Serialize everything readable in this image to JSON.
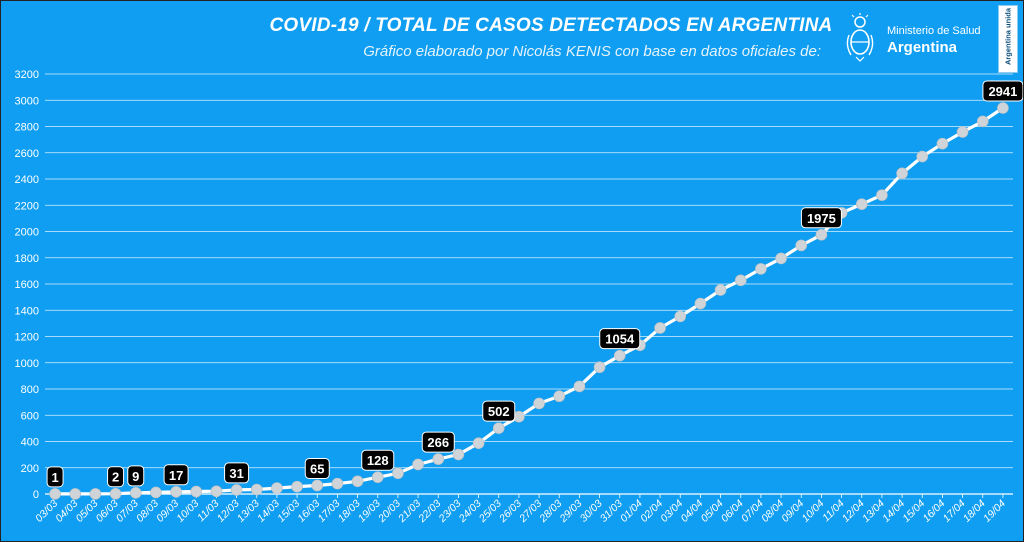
{
  "title": "COVID-19  /  TOTAL DE CASOS DETECTADOS EN ARGENTINA",
  "subtitle": "Gráfico elaborado por Nicolás KENIS con base en datos oficiales de:",
  "logo": {
    "ministry": "Ministerio de Salud",
    "country": "Argentina",
    "badge": "Argentina unida",
    "icon": "coat-of-arms-icon"
  },
  "colors": {
    "background": "#0f9ef2",
    "line": "#ffffff",
    "marker": "#cfd4d8",
    "label_box": "#000000",
    "label_text": "#ffffff",
    "grid": "#ffffff"
  },
  "chart_data": {
    "type": "line",
    "title": "COVID-19  /  TOTAL DE CASOS DETECTADOS EN ARGENTINA",
    "xlabel": "",
    "ylabel": "",
    "ylim": [
      0,
      3200
    ],
    "yticks": [
      0,
      200,
      400,
      600,
      800,
      1000,
      1200,
      1400,
      1600,
      1800,
      2000,
      2200,
      2400,
      2600,
      2800,
      3000,
      3200
    ],
    "grid": true,
    "legend": "none",
    "categories": [
      "03/03",
      "04/03",
      "05/03",
      "06/03",
      "07/03",
      "08/03",
      "09/03",
      "10/03",
      "11/03",
      "12/03",
      "13/03",
      "14/03",
      "15/03",
      "16/03",
      "17/03",
      "18/03",
      "19/03",
      "20/03",
      "21/03",
      "22/03",
      "23/03",
      "24/03",
      "25/03",
      "26/03",
      "27/03",
      "28/03",
      "29/03",
      "30/03",
      "31/03",
      "01/04",
      "02/04",
      "03/04",
      "04/04",
      "05/04",
      "06/04",
      "07/04",
      "08/04",
      "09/04",
      "10/04",
      "11/04",
      "12/04",
      "13/04",
      "14/04",
      "15/04",
      "16/04",
      "17/04",
      "18/04",
      "19/04"
    ],
    "values": [
      1,
      1,
      1,
      2,
      9,
      12,
      17,
      19,
      21,
      31,
      34,
      45,
      56,
      65,
      79,
      97,
      128,
      158,
      225,
      266,
      301,
      387,
      502,
      589,
      690,
      745,
      820,
      966,
      1054,
      1133,
      1265,
      1353,
      1451,
      1554,
      1628,
      1715,
      1795,
      1894,
      1975,
      2142,
      2208,
      2277,
      2443,
      2571,
      2669,
      2758,
      2839,
      2941
    ],
    "data_labels": [
      {
        "index": 0,
        "text": "1"
      },
      {
        "index": 3,
        "text": "2"
      },
      {
        "index": 4,
        "text": "9"
      },
      {
        "index": 6,
        "text": "17"
      },
      {
        "index": 9,
        "text": "31"
      },
      {
        "index": 13,
        "text": "65"
      },
      {
        "index": 16,
        "text": "128"
      },
      {
        "index": 19,
        "text": "266"
      },
      {
        "index": 22,
        "text": "502"
      },
      {
        "index": 28,
        "text": "1054"
      },
      {
        "index": 38,
        "text": "1975"
      },
      {
        "index": 47,
        "text": "2941"
      }
    ]
  }
}
